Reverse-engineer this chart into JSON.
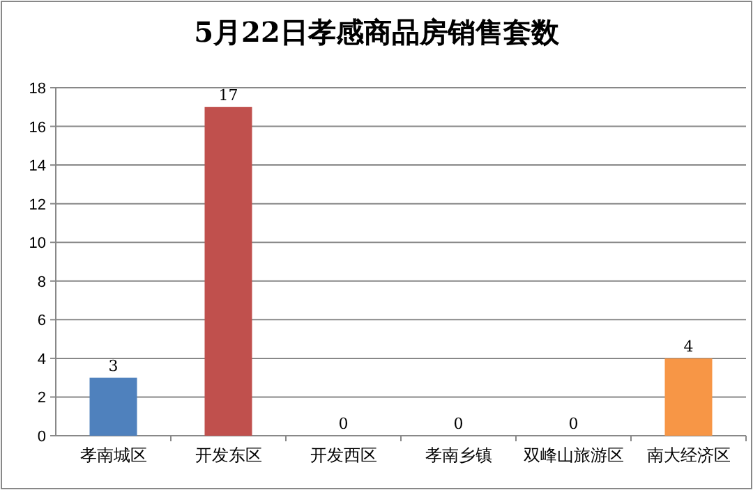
{
  "chart_data": {
    "type": "bar",
    "title": "5月22日孝感商品房销售套数",
    "categories": [
      "孝南城区",
      "开发东区",
      "开发西区",
      "孝南乡镇",
      "双峰山旅游区",
      "南大经济区"
    ],
    "values": [
      3,
      17,
      0,
      0,
      0,
      4
    ],
    "colors": [
      "#4f81bd",
      "#c0504d",
      "#9bbb59",
      "#8064a2",
      "#4bacc6",
      "#f79646"
    ],
    "ylim": [
      0,
      18
    ],
    "yticks": [
      0,
      2,
      4,
      6,
      8,
      10,
      12,
      14,
      16,
      18
    ],
    "grid": "y",
    "data_labels": true
  }
}
